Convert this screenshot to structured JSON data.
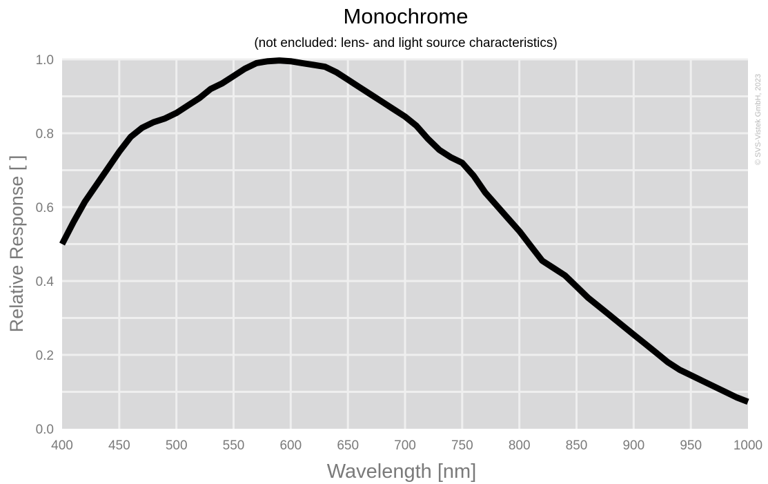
{
  "chart_data": {
    "type": "line",
    "title": "Monochrome",
    "subtitle": "(not encluded: lens- and light source characteristics)",
    "xlabel": "Wavelength [nm]",
    "ylabel": "Relative Response [ ]",
    "xlim": [
      400,
      1000
    ],
    "ylim": [
      0,
      1.0
    ],
    "x_ticks": [
      "400",
      "450",
      "500",
      "550",
      "600",
      "650",
      "700",
      "750",
      "800",
      "850",
      "900",
      "950",
      "1000"
    ],
    "y_ticks": [
      "0.0",
      "0.2",
      "0.4",
      "0.6",
      "0.8",
      "1.0"
    ],
    "grid": true,
    "watermark": "© SVS-Vistek GmbH, 2023",
    "colors": {
      "plot_bg": "#d9d9da",
      "grid": "#efefef",
      "line": "#000000",
      "axis_text": "#7a7a7a",
      "title": "#000000"
    },
    "series": [
      {
        "x": [
          400,
          410,
          420,
          430,
          440,
          450,
          460,
          470,
          480,
          490,
          500,
          510,
          520,
          530,
          540,
          550,
          560,
          570,
          580,
          590,
          600,
          610,
          620,
          630,
          640,
          650,
          660,
          670,
          680,
          690,
          700,
          710,
          720,
          730,
          740,
          750,
          760,
          770,
          780,
          790,
          800,
          810,
          820,
          830,
          840,
          850,
          860,
          870,
          880,
          890,
          900,
          910,
          920,
          930,
          940,
          950,
          960,
          970,
          980,
          990,
          1000
        ],
        "values": [
          0.5,
          0.56,
          0.615,
          0.66,
          0.705,
          0.75,
          0.79,
          0.815,
          0.83,
          0.84,
          0.855,
          0.875,
          0.895,
          0.92,
          0.935,
          0.955,
          0.975,
          0.99,
          0.995,
          0.997,
          0.995,
          0.99,
          0.985,
          0.98,
          0.965,
          0.945,
          0.925,
          0.905,
          0.885,
          0.865,
          0.845,
          0.82,
          0.785,
          0.755,
          0.735,
          0.72,
          0.685,
          0.64,
          0.605,
          0.57,
          0.535,
          0.495,
          0.455,
          0.435,
          0.415,
          0.385,
          0.355,
          0.33,
          0.305,
          0.28,
          0.255,
          0.23,
          0.205,
          0.18,
          0.16,
          0.145,
          0.13,
          0.115,
          0.1,
          0.085,
          0.073
        ]
      }
    ]
  }
}
